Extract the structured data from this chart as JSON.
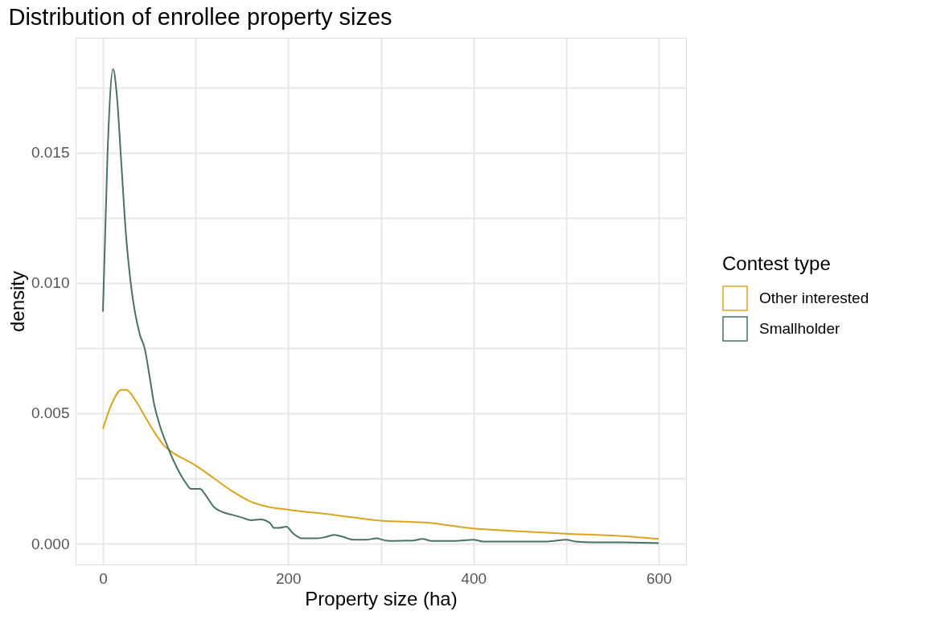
{
  "chart_data": {
    "type": "line",
    "title": "Distribution of enrollee property sizes",
    "xlabel": "Property size (ha)",
    "ylabel": "density",
    "legend_title": "Contest type",
    "legend": "right",
    "grid": true,
    "xlim": [
      -29.5,
      629.5
    ],
    "xticks": [
      0,
      {
        "value": 100,
        "label": null
      },
      200,
      {
        "value": 300,
        "label": null
      },
      400,
      {
        "value": 500,
        "label": null
      },
      600
    ],
    "ylim": [
      -0.0008,
      0.0194
    ],
    "yticks": [
      {
        "value": 0,
        "label": "0.000"
      },
      {
        "value": 0.0025,
        "label": null
      },
      {
        "value": 0.005,
        "label": "0.005"
      },
      {
        "value": 0.0075,
        "label": null
      },
      {
        "value": 0.01,
        "label": "0.010"
      },
      {
        "value": 0.0125,
        "label": null
      },
      {
        "value": 0.015,
        "label": "0.015"
      },
      {
        "value": 0.0175,
        "label": null
      }
    ],
    "series": [
      {
        "name": "Other interested",
        "color": "#daa520",
        "x": [
          0,
          10,
          20,
          25,
          35,
          45,
          55,
          65,
          75,
          90,
          100,
          120,
          140,
          160,
          180,
          200,
          250,
          300,
          350,
          400,
          450,
          500,
          550,
          600
        ],
        "values": [
          0.0044,
          0.0054,
          0.0059,
          0.0059,
          0.0055,
          0.0049,
          0.0043,
          0.0038,
          0.0035,
          0.0032,
          0.003,
          0.0025,
          0.002,
          0.0016,
          0.0014,
          0.0013,
          0.0011,
          0.00088,
          0.0008,
          0.00058,
          0.00047,
          0.00038,
          0.00031,
          0.00018
        ]
      },
      {
        "name": "Smallholder",
        "color": "#4a7262",
        "x": [
          0,
          5,
          11,
          15,
          20,
          25,
          30,
          40,
          45,
          50,
          55,
          60,
          70,
          80,
          90,
          95,
          105,
          110,
          120,
          130,
          140,
          150,
          160,
          170,
          180,
          185,
          190,
          198,
          205,
          215,
          230,
          240,
          250,
          260,
          270,
          285,
          295,
          305,
          315,
          335,
          345,
          355,
          380,
          400,
          410,
          450,
          480,
          500,
          510,
          530,
          560,
          600
        ],
        "values": [
          0.0089,
          0.015,
          0.0182,
          0.0172,
          0.0145,
          0.0118,
          0.01,
          0.008,
          0.0075,
          0.0065,
          0.0054,
          0.0047,
          0.0037,
          0.0029,
          0.0023,
          0.0021,
          0.0021,
          0.0019,
          0.0014,
          0.0012,
          0.0011,
          0.001,
          0.0009,
          0.00093,
          0.0008,
          0.0006,
          0.0006,
          0.00065,
          0.0004,
          0.0002,
          0.0002,
          0.00025,
          0.00033,
          0.00025,
          0.00015,
          0.00015,
          0.0002,
          0.00012,
          0.0001,
          0.00012,
          0.00018,
          0.0001,
          0.0001,
          0.00015,
          8e-05,
          8e-05,
          8e-05,
          0.00015,
          8e-05,
          5e-05,
          5e-05,
          2e-05
        ]
      }
    ]
  }
}
